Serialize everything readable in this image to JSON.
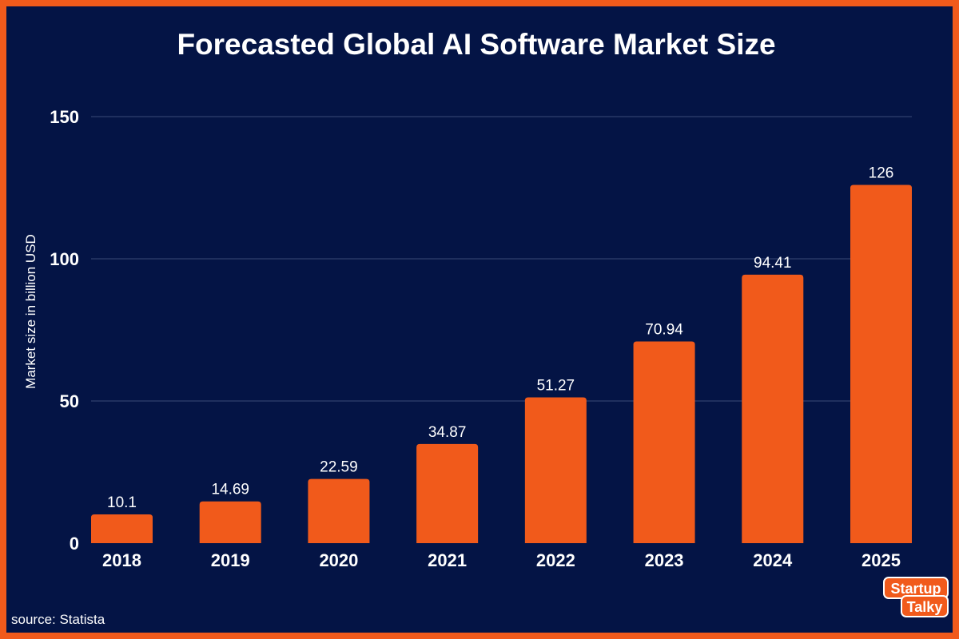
{
  "chart_data": {
    "type": "bar",
    "title": "Forecasted Global AI Software Market Size",
    "xlabel": "",
    "ylabel": "Market size in billion USD",
    "categories": [
      "2018",
      "2019",
      "2020",
      "2021",
      "2022",
      "2023",
      "2024",
      "2025"
    ],
    "values": [
      10.1,
      14.69,
      22.59,
      34.87,
      51.27,
      70.94,
      94.41,
      126
    ],
    "value_labels": [
      "10.1",
      "14.69",
      "22.59",
      "34.87",
      "51.27",
      "70.94",
      "94.41",
      "126"
    ],
    "ylim": [
      0,
      150
    ],
    "yticks": [
      0,
      50,
      100,
      150
    ],
    "grid": true,
    "bar_color": "#F15A1B",
    "background_color": "#041445",
    "border_color": "#F15A1B"
  },
  "source": "source: Statista",
  "logo": {
    "line1": "Startup",
    "line2": "Talky"
  }
}
